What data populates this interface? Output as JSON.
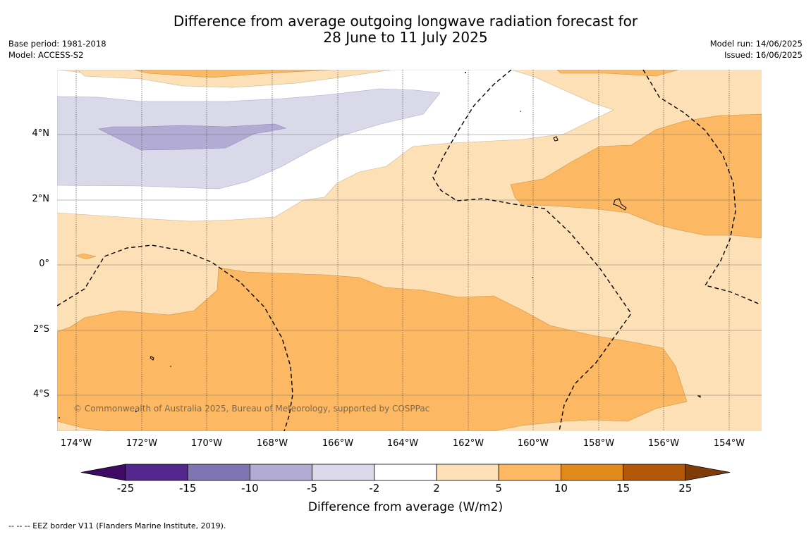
{
  "title": {
    "line1": "Difference from average outgoing longwave radiation forecast for",
    "line2": "28 June to 11 July 2025"
  },
  "meta_left": {
    "base_period": "Base period: 1981-2018",
    "model": "Model: ACCESS-S2"
  },
  "meta_right": {
    "model_run": "Model run: 14/06/2025",
    "issued": "Issued: 16/06/2025"
  },
  "map": {
    "lat_labels": [
      "4°N",
      "2°N",
      "0°",
      "2°S",
      "4°S"
    ],
    "lon_labels": [
      "174°W",
      "172°W",
      "170°W",
      "168°W",
      "166°W",
      "164°W",
      "162°W",
      "160°W",
      "158°W",
      "156°W",
      "154°W"
    ],
    "copyright": "© Commonwealth of Australia 2025, Bureau of Meteorology, supported by COSPPac"
  },
  "colorbar": {
    "ticks": [
      "-25",
      "-15",
      "-10",
      "-5",
      "-2",
      "2",
      "5",
      "10",
      "15",
      "25"
    ],
    "colors": [
      "#3f0a63",
      "#54278f",
      "#8075b2",
      "#b2abd3",
      "#d9d9ea",
      "#ffffff",
      "#fde0b5",
      "#fcb862",
      "#e38a1c",
      "#b3570b",
      "#7f3b08"
    ],
    "label": "Difference from average (W/m2)"
  },
  "footnote": "--  --  -- EEZ border V11 (Flanders Marine Institute, 2019)."
}
